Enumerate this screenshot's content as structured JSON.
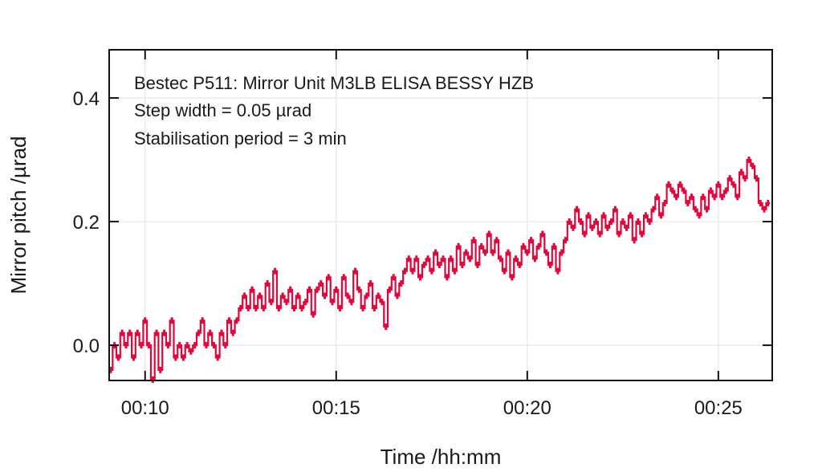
{
  "chart_data": {
    "type": "line",
    "title": "",
    "annotations": [
      "Bestec P511: Mirror Unit M3LB ELISA BESSY HZB",
      "Step width = 0.05 µrad",
      "Stabilisation period = 3 min"
    ],
    "xlabel": "Time /hh:mm",
    "ylabel": "Mirror pitch /µrad",
    "xlim_minutes": [
      9.06,
      26.41
    ],
    "ylim": [
      -0.057,
      0.478
    ],
    "xticks": [
      {
        "value": 10,
        "label": "00:10"
      },
      {
        "value": 15,
        "label": "00:15"
      },
      {
        "value": 20,
        "label": "00:20"
      },
      {
        "value": 25,
        "label": "00:25"
      }
    ],
    "yticks": [
      {
        "value": 0.0,
        "label": "0.0"
      },
      {
        "value": 0.2,
        "label": "0.2"
      },
      {
        "value": 0.4,
        "label": "0.4"
      }
    ],
    "grid": true,
    "series": [
      {
        "name": "Mirror pitch",
        "color": "#e0053a",
        "x_start_minutes": 9.1,
        "x_step_minutes": 0.1,
        "values": [
          -0.04,
          0.0,
          -0.02,
          0.02,
          0.0,
          0.02,
          -0.02,
          0.02,
          0.0,
          0.04,
          0.0,
          -0.06,
          0.02,
          -0.04,
          0.02,
          0.0,
          0.04,
          -0.02,
          0.0,
          -0.02,
          0.0,
          -0.01,
          0.0,
          0.02,
          0.04,
          0.0,
          0.02,
          0.0,
          -0.02,
          0.02,
          0.0,
          0.04,
          0.02,
          0.04,
          0.06,
          0.08,
          0.06,
          0.09,
          0.06,
          0.08,
          0.06,
          0.1,
          0.07,
          0.12,
          0.06,
          0.08,
          0.07,
          0.09,
          0.06,
          0.08,
          0.06,
          0.07,
          0.09,
          0.05,
          0.09,
          0.1,
          0.08,
          0.11,
          0.07,
          0.09,
          0.06,
          0.11,
          0.08,
          0.07,
          0.12,
          0.09,
          0.06,
          0.08,
          0.1,
          0.06,
          0.08,
          0.07,
          0.03,
          0.09,
          0.11,
          0.08,
          0.1,
          0.12,
          0.14,
          0.12,
          0.14,
          0.11,
          0.13,
          0.14,
          0.12,
          0.15,
          0.13,
          0.14,
          0.11,
          0.14,
          0.12,
          0.16,
          0.13,
          0.15,
          0.14,
          0.17,
          0.13,
          0.16,
          0.15,
          0.18,
          0.15,
          0.17,
          0.14,
          0.12,
          0.15,
          0.11,
          0.14,
          0.13,
          0.16,
          0.15,
          0.17,
          0.14,
          0.16,
          0.18,
          0.15,
          0.13,
          0.16,
          0.12,
          0.15,
          0.17,
          0.2,
          0.19,
          0.22,
          0.2,
          0.18,
          0.21,
          0.19,
          0.2,
          0.18,
          0.21,
          0.19,
          0.2,
          0.22,
          0.18,
          0.2,
          0.19,
          0.21,
          0.17,
          0.2,
          0.18,
          0.21,
          0.2,
          0.22,
          0.24,
          0.21,
          0.23,
          0.26,
          0.25,
          0.24,
          0.26,
          0.25,
          0.23,
          0.24,
          0.22,
          0.21,
          0.24,
          0.22,
          0.25,
          0.24,
          0.26,
          0.24,
          0.25,
          0.27,
          0.26,
          0.24,
          0.28,
          0.27,
          0.3,
          0.29,
          0.27,
          0.23,
          0.22,
          0.23
        ]
      }
    ]
  }
}
